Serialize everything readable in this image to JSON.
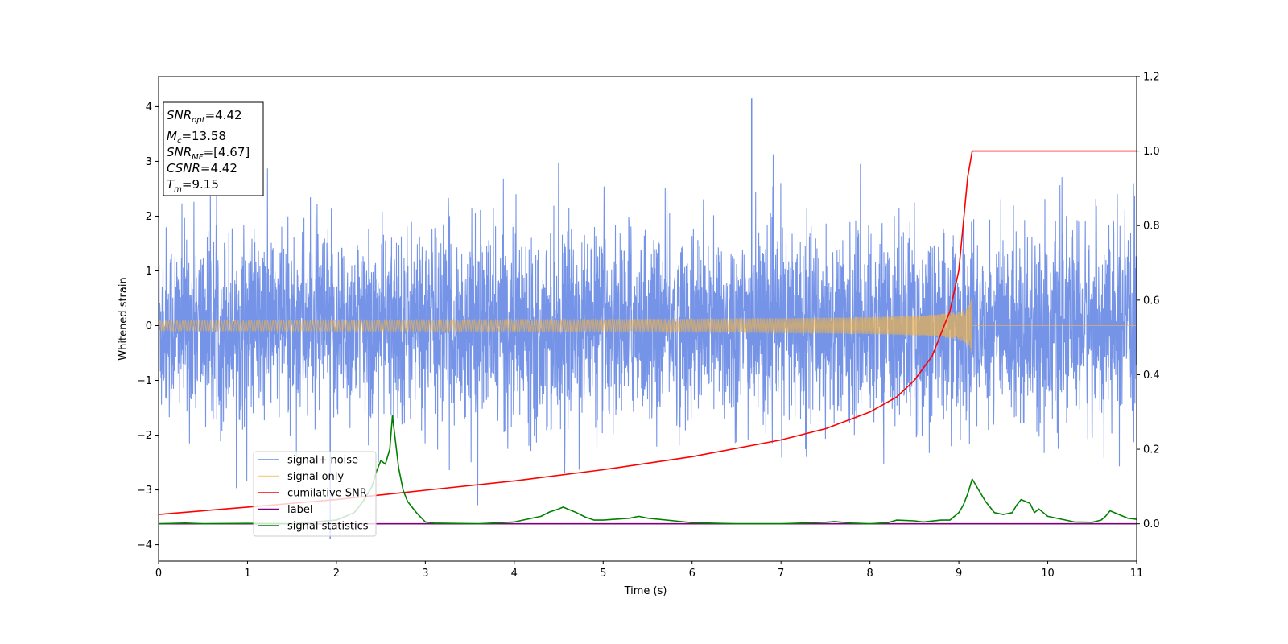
{
  "chart_data": {
    "type": "line",
    "title": "",
    "xlabel": "Time (s)",
    "ylabel": "Whitened strain",
    "xlim": [
      0,
      11
    ],
    "ylim": [
      -4.3,
      4.55
    ],
    "y2lim": [
      -0.1,
      1.2
    ],
    "grid": false,
    "legend_position": "lower-left",
    "xticks": [
      0,
      1,
      2,
      3,
      4,
      5,
      6,
      7,
      8,
      9,
      10,
      11
    ],
    "yticks": [
      -4,
      -3,
      -2,
      -1,
      0,
      1,
      2,
      3,
      4
    ],
    "y2ticks": [
      0.0,
      0.2,
      0.4,
      0.6,
      0.8,
      1.0,
      1.2
    ],
    "info_box": {
      "snr_opt": "=4.42",
      "mc": "=13.58",
      "snr_mf": "=[4.67]",
      "csnr": "=4.42",
      "tm": "=9.15"
    },
    "series": [
      {
        "name": "signal+ noise",
        "axis": "left",
        "color": "#6f8ee6",
        "description_values": {
          "sigma": 0.85,
          "extreme_max": 4.15,
          "extreme_min": -3.9,
          "x_range": [
            0,
            11
          ]
        }
      },
      {
        "name": "signal only",
        "axis": "left",
        "color": "#f5b342",
        "chirp": {
          "t_merge": 9.15,
          "amp_at_merge": 0.78,
          "x_range": [
            0,
            11
          ]
        }
      },
      {
        "name": "cumilative SNR",
        "axis": "right",
        "color": "#ff0000",
        "x": [
          0,
          1,
          2,
          3,
          4,
          5,
          6,
          7,
          7.5,
          8,
          8.3,
          8.5,
          8.7,
          8.9,
          9.0,
          9.1,
          9.15,
          11
        ],
        "y": [
          0.025,
          0.045,
          0.065,
          0.09,
          0.115,
          0.145,
          0.18,
          0.225,
          0.255,
          0.3,
          0.34,
          0.385,
          0.45,
          0.57,
          0.68,
          0.93,
          1.0,
          1.0
        ]
      },
      {
        "name": "label",
        "axis": "right",
        "color": "#800080",
        "x": [
          0,
          11
        ],
        "y": [
          0.0,
          0.0
        ]
      },
      {
        "name": "signal statistics",
        "axis": "right",
        "color": "#008000",
        "x": [
          0,
          0.3,
          0.5,
          1.0,
          1.5,
          2.0,
          2.2,
          2.3,
          2.35,
          2.4,
          2.45,
          2.5,
          2.55,
          2.6,
          2.63,
          2.66,
          2.7,
          2.75,
          2.8,
          2.9,
          3.0,
          3.1,
          3.3,
          3.6,
          4.0,
          4.3,
          4.4,
          4.5,
          4.55,
          4.6,
          4.7,
          4.8,
          4.9,
          5.0,
          5.3,
          5.4,
          5.5,
          5.8,
          6.0,
          6.5,
          7.0,
          7.5,
          7.6,
          7.8,
          8.0,
          8.2,
          8.3,
          8.5,
          8.6,
          8.8,
          8.9,
          9.0,
          9.05,
          9.1,
          9.15,
          9.2,
          9.3,
          9.4,
          9.5,
          9.6,
          9.65,
          9.7,
          9.8,
          9.85,
          9.9,
          10.0,
          10.3,
          10.5,
          10.6,
          10.65,
          10.7,
          10.8,
          10.9,
          11.0
        ],
        "y": [
          0.0,
          0.002,
          0.0,
          0.001,
          0.0,
          0.01,
          0.03,
          0.06,
          0.08,
          0.1,
          0.14,
          0.17,
          0.16,
          0.2,
          0.29,
          0.23,
          0.15,
          0.09,
          0.06,
          0.03,
          0.005,
          0.002,
          0.001,
          0.0,
          0.005,
          0.02,
          0.032,
          0.04,
          0.045,
          0.04,
          0.03,
          0.018,
          0.01,
          0.01,
          0.015,
          0.02,
          0.015,
          0.008,
          0.003,
          0.0,
          0.0,
          0.004,
          0.006,
          0.002,
          0.0,
          0.003,
          0.01,
          0.008,
          0.005,
          0.01,
          0.01,
          0.03,
          0.05,
          0.08,
          0.12,
          0.1,
          0.06,
          0.03,
          0.025,
          0.03,
          0.05,
          0.065,
          0.055,
          0.03,
          0.04,
          0.02,
          0.005,
          0.004,
          0.01,
          0.02,
          0.035,
          0.025,
          0.015,
          0.012
        ]
      }
    ]
  }
}
